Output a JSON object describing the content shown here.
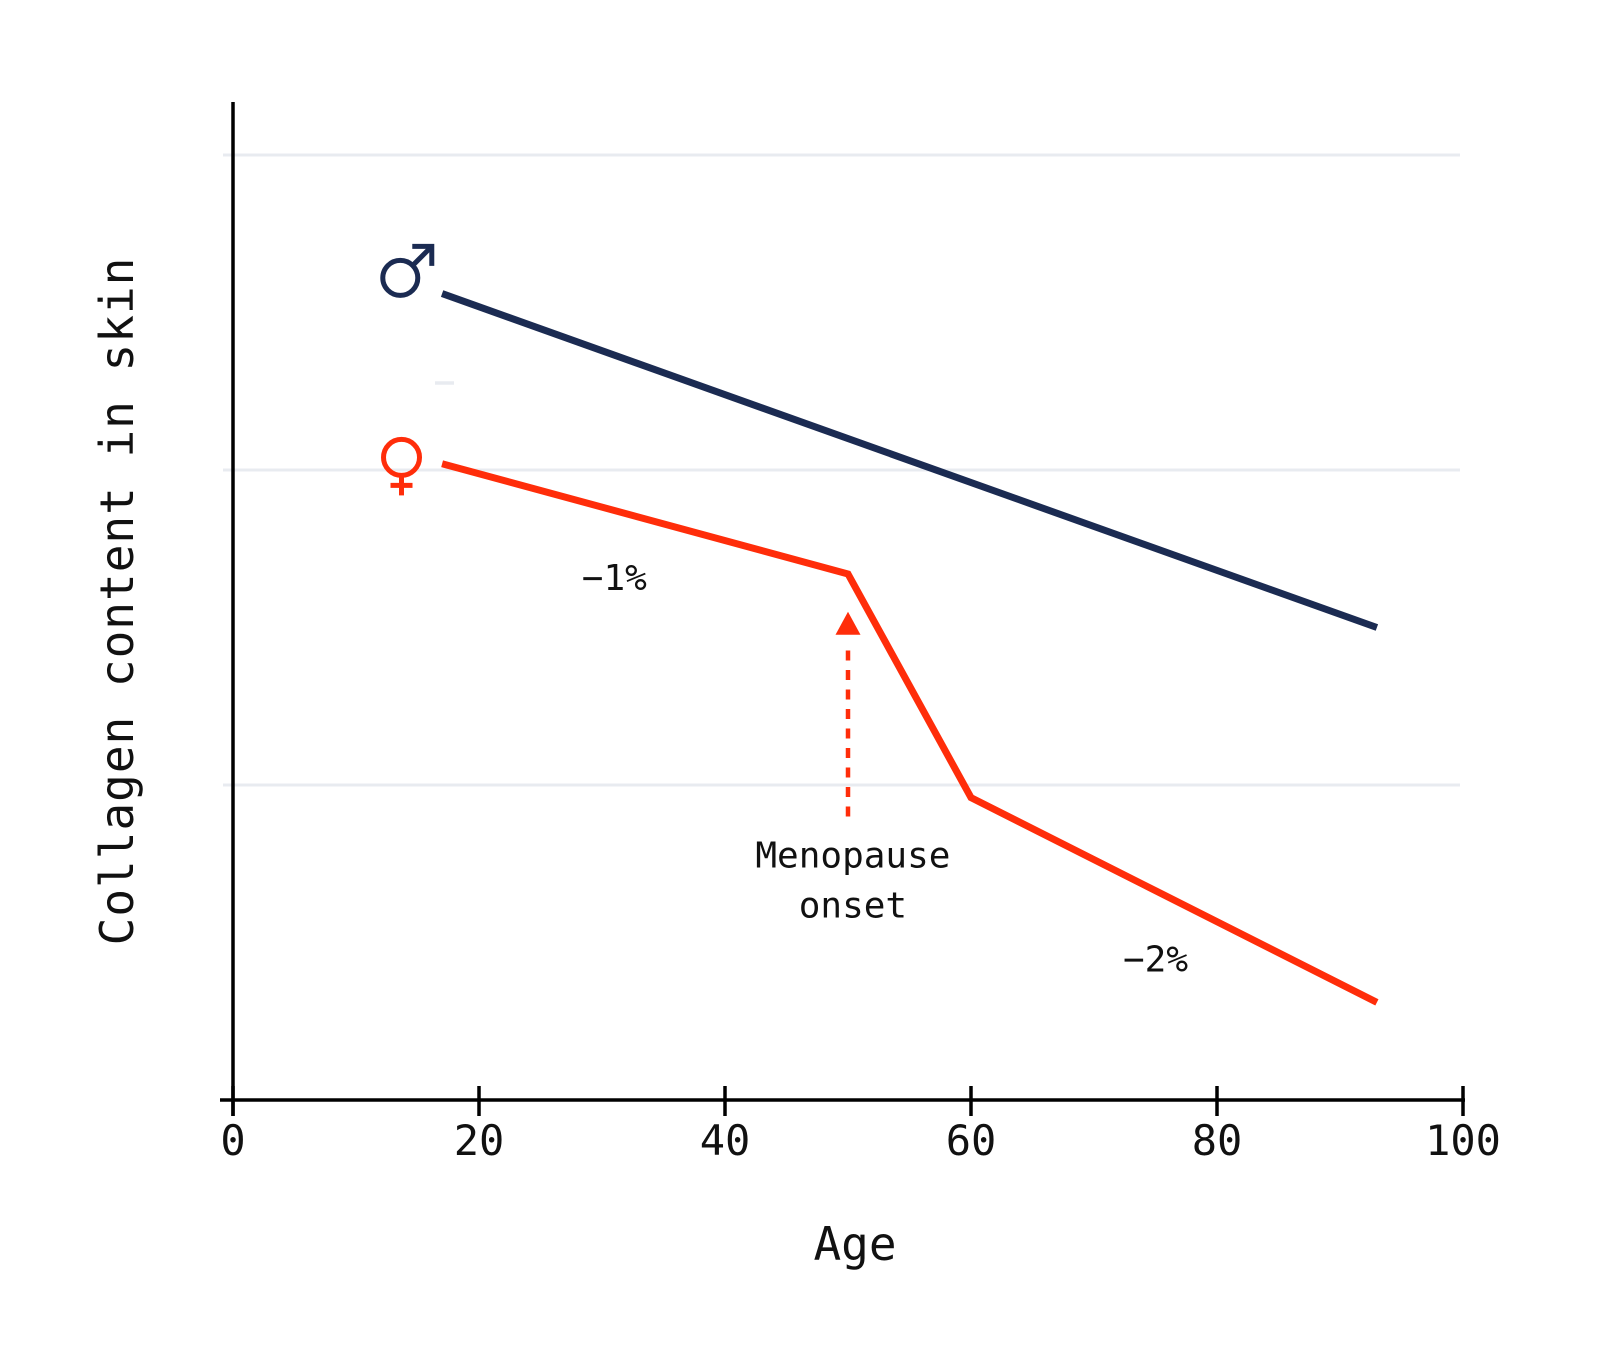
{
  "figure": {
    "background": "#ffffff",
    "colors": {
      "male": "#1b2b52",
      "female": "#ff2d0a",
      "grid": "#e8ebf0",
      "axis": "#000000",
      "text": "#111111"
    }
  },
  "chart_data": {
    "type": "line",
    "title": "",
    "xlabel": "Age",
    "ylabel": "Collagen content in skin",
    "x_axis": {
      "range": [
        0,
        100
      ],
      "ticks": [
        0,
        20,
        40,
        60,
        80,
        100
      ]
    },
    "y_axis": {
      "tick_labels_visible": false,
      "gridline_values": [
        1,
        2,
        3
      ],
      "unit_note": "unlabeled axis; values in arbitrary units, 1.0 per gridline interval, 0 at x-axis"
    },
    "series": [
      {
        "name": "Male",
        "symbol": "male-sign",
        "color_key": "male",
        "marker": {
          "age": 13.6,
          "value": 2.61
        },
        "points": [
          {
            "age": 17,
            "value": 2.56
          },
          {
            "age": 93,
            "value": 1.5
          }
        ]
      },
      {
        "name": "Female",
        "symbol": "female-sign",
        "color_key": "female",
        "marker": {
          "age": 13.7,
          "value": 2.04
        },
        "points": [
          {
            "age": 17,
            "value": 2.02
          },
          {
            "age": 50,
            "value": 1.67
          },
          {
            "age": 60,
            "value": 0.96
          },
          {
            "age": 93,
            "value": 0.31
          }
        ]
      }
    ],
    "annotations": {
      "rate_before": {
        "text": "−1%",
        "age": 31,
        "value": 1.66
      },
      "rate_after": {
        "text": "−2%",
        "age": 75,
        "value": 0.45
      },
      "menopause_line1": {
        "text": "Menopause",
        "age": 50.4,
        "value": 0.78
      },
      "menopause_line2": {
        "text": "onset",
        "age": 50.4,
        "value": 0.62
      },
      "arrow": {
        "age": 50,
        "tail_value": 0.9,
        "head_value": 1.55
      }
    }
  }
}
